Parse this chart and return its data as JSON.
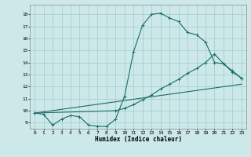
{
  "xlabel": "Humidex (Indice chaleur)",
  "ylabel": "",
  "bg_color": "#cce8e8",
  "grid_color": "#aacfcf",
  "line_color": "#1a6b6b",
  "xlim": [
    -0.5,
    23.5
  ],
  "ylim": [
    8.5,
    18.8
  ],
  "xticks": [
    0,
    1,
    2,
    3,
    4,
    5,
    6,
    7,
    8,
    9,
    10,
    11,
    12,
    13,
    14,
    15,
    16,
    17,
    18,
    19,
    20,
    21,
    22,
    23
  ],
  "yticks": [
    9,
    10,
    11,
    12,
    13,
    14,
    15,
    16,
    17,
    18
  ],
  "line1_x": [
    0,
    1,
    2,
    3,
    4,
    5,
    6,
    7,
    8,
    9,
    10,
    11,
    12,
    13,
    14,
    15,
    16,
    17,
    18,
    19,
    20,
    21,
    22,
    23
  ],
  "line1_y": [
    9.8,
    9.7,
    8.8,
    9.3,
    9.6,
    9.5,
    8.8,
    8.7,
    8.7,
    9.3,
    11.2,
    14.9,
    17.1,
    18.0,
    18.1,
    17.7,
    17.4,
    16.5,
    16.3,
    15.7,
    14.0,
    13.9,
    13.3,
    12.7
  ],
  "line2_x": [
    0,
    9,
    10,
    11,
    12,
    13,
    14,
    15,
    16,
    17,
    18,
    19,
    20,
    21,
    22,
    23
  ],
  "line2_y": [
    9.8,
    10.0,
    10.2,
    10.5,
    10.9,
    11.3,
    11.8,
    12.2,
    12.6,
    13.1,
    13.5,
    14.0,
    14.7,
    13.9,
    13.2,
    12.7
  ],
  "line3_x": [
    0,
    23
  ],
  "line3_y": [
    9.8,
    12.2
  ]
}
